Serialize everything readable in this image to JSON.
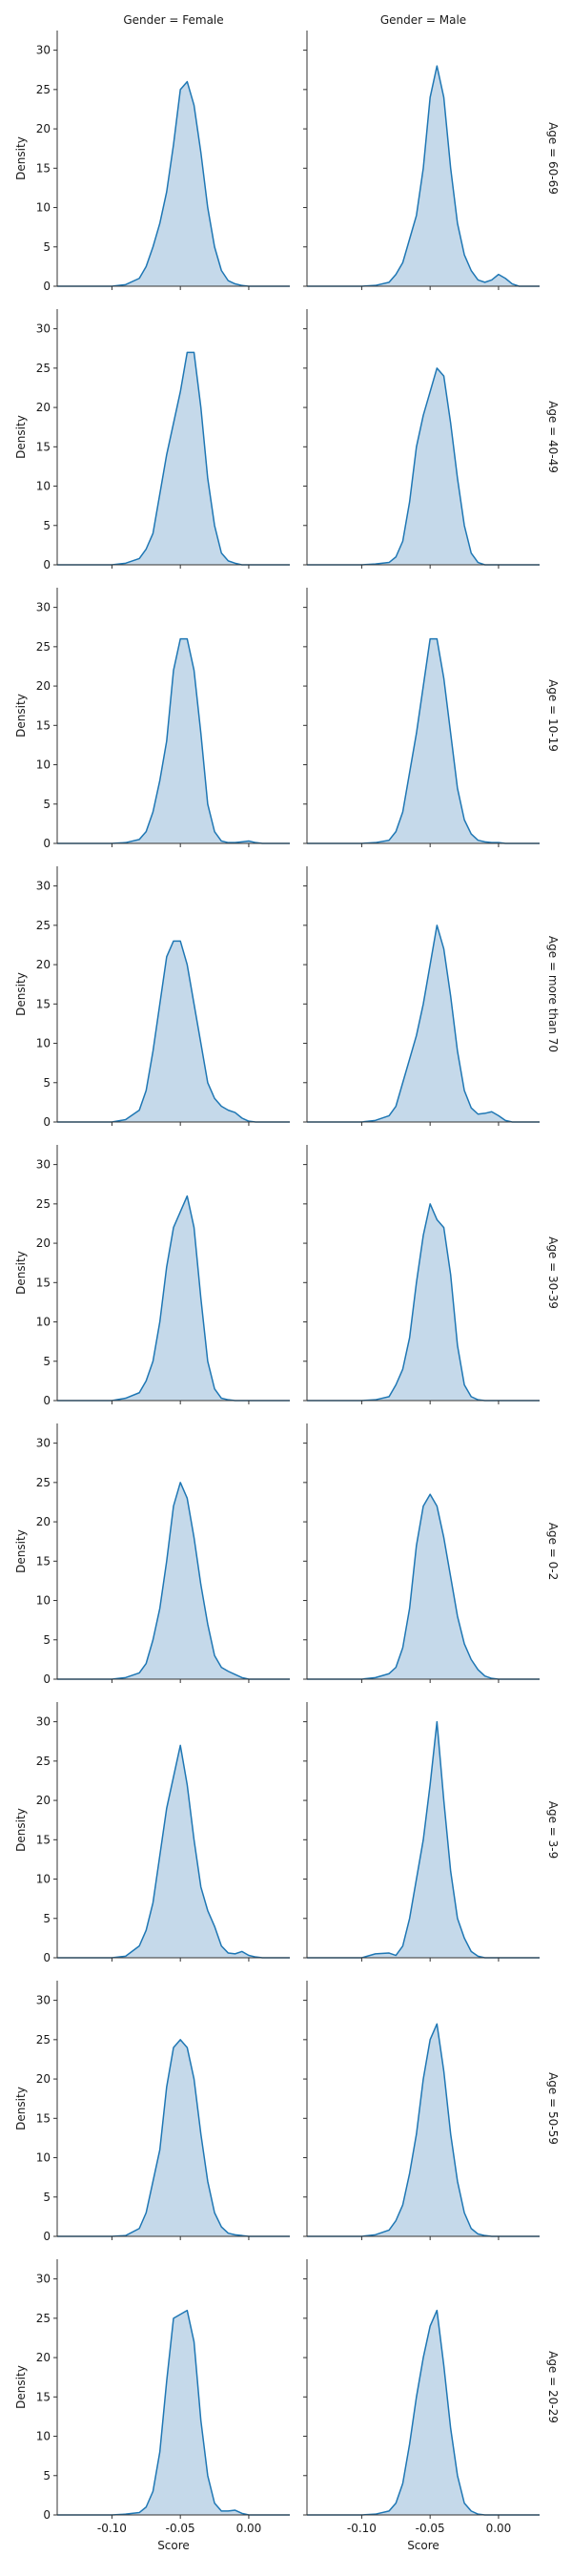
{
  "chart_data": {
    "type": "area",
    "kind": "kde-facet-grid",
    "col_labels": [
      "Gender = Female",
      "Gender = Male"
    ],
    "row_labels": [
      "Age = 60-69",
      "Age = 40-49",
      "Age = 10-19",
      "Age = more than 70",
      "Age = 30-39",
      "Age = 0-2",
      "Age = 3-9",
      "Age = 50-59",
      "Age = 20-29"
    ],
    "xlabel": "Score",
    "ylabel": "Density",
    "xlim": [
      -0.14,
      0.03
    ],
    "ylim": [
      0,
      32.5
    ],
    "xticks": [
      -0.1,
      -0.05,
      0.0
    ],
    "xtick_labels": [
      "-0.10",
      "-0.05",
      "0.00"
    ],
    "yticks": [
      0,
      5,
      10,
      15,
      20,
      25,
      30
    ],
    "ytick_labels": [
      "0",
      "5",
      "10",
      "15",
      "20",
      "25",
      "30"
    ],
    "grid": false,
    "line_color": "#1f77b4",
    "fill_color": "#c5d9ea",
    "x": [
      -0.14,
      -0.13,
      -0.12,
      -0.11,
      -0.1,
      -0.09,
      -0.08,
      -0.075,
      -0.07,
      -0.065,
      -0.06,
      -0.055,
      -0.05,
      -0.045,
      -0.04,
      -0.035,
      -0.03,
      -0.025,
      -0.02,
      -0.015,
      -0.01,
      -0.005,
      0.0,
      0.005,
      0.01,
      0.015,
      0.02,
      0.03
    ],
    "panels": [
      [
        {
          "values": [
            0,
            0,
            0,
            0,
            0,
            0.2,
            1,
            2.5,
            5,
            8,
            12,
            18,
            25,
            26,
            23,
            17,
            10,
            5,
            2,
            0.7,
            0.3,
            0.1,
            0,
            0,
            0,
            0,
            0,
            0
          ]
        },
        {
          "values": [
            0,
            0,
            0,
            0,
            0,
            0.1,
            0.5,
            1.5,
            3,
            6,
            9,
            15,
            24,
            28,
            24,
            15,
            8,
            4,
            2,
            0.8,
            0.5,
            0.8,
            1.5,
            1,
            0.3,
            0,
            0,
            0
          ]
        }
      ],
      [
        {
          "values": [
            0,
            0,
            0,
            0,
            0,
            0.2,
            0.8,
            2,
            4,
            9,
            14,
            18,
            22,
            27,
            27,
            20,
            11,
            5,
            1.5,
            0.5,
            0.2,
            0,
            0,
            0,
            0,
            0,
            0,
            0
          ]
        },
        {
          "values": [
            0,
            0,
            0,
            0,
            0,
            0.1,
            0.3,
            1,
            3,
            8,
            15,
            19,
            22,
            25,
            24,
            18,
            11,
            5,
            1.5,
            0.3,
            0,
            0,
            0,
            0,
            0,
            0,
            0,
            0
          ]
        }
      ],
      [
        {
          "values": [
            0,
            0,
            0,
            0,
            0,
            0.1,
            0.5,
            1.5,
            4,
            8,
            13,
            22,
            26,
            26,
            22,
            14,
            5,
            1.5,
            0.3,
            0.1,
            0.1,
            0.2,
            0.3,
            0.1,
            0,
            0,
            0,
            0
          ]
        },
        {
          "values": [
            0,
            0,
            0,
            0,
            0,
            0.1,
            0.4,
            1.5,
            4,
            9,
            14,
            20,
            26,
            26,
            21,
            14,
            7,
            3,
            1.2,
            0.4,
            0.2,
            0.1,
            0.1,
            0,
            0,
            0,
            0,
            0
          ]
        }
      ],
      [
        {
          "values": [
            0,
            0,
            0,
            0,
            0,
            0.3,
            1.5,
            4,
            9,
            15,
            21,
            23,
            23,
            20,
            15,
            10,
            5,
            3,
            2,
            1.5,
            1.2,
            0.5,
            0.1,
            0,
            0,
            0,
            0,
            0
          ]
        },
        {
          "values": [
            0,
            0,
            0,
            0,
            0,
            0.2,
            0.8,
            2,
            5,
            8,
            11,
            15,
            20,
            25,
            22,
            16,
            9,
            4,
            1.8,
            1,
            1.1,
            1.3,
            0.8,
            0.2,
            0,
            0,
            0,
            0
          ]
        }
      ],
      [
        {
          "values": [
            0,
            0,
            0,
            0,
            0,
            0.3,
            1,
            2.5,
            5,
            10,
            17,
            22,
            24,
            26,
            22,
            13,
            5,
            1.5,
            0.3,
            0.1,
            0,
            0,
            0,
            0,
            0,
            0,
            0,
            0
          ]
        },
        {
          "values": [
            0,
            0,
            0,
            0,
            0,
            0.1,
            0.5,
            2,
            4,
            8,
            15,
            21,
            25,
            23,
            22,
            16,
            7,
            2,
            0.5,
            0.1,
            0,
            0,
            0,
            0,
            0,
            0,
            0,
            0
          ]
        }
      ],
      [
        {
          "values": [
            0,
            0,
            0,
            0,
            0,
            0.2,
            0.8,
            2,
            5,
            9,
            15,
            22,
            25,
            23,
            18,
            12,
            7,
            3,
            1.5,
            1,
            0.6,
            0.2,
            0,
            0,
            0,
            0,
            0,
            0
          ]
        },
        {
          "values": [
            0,
            0,
            0,
            0,
            0,
            0.2,
            0.7,
            1.5,
            4,
            9,
            17,
            22,
            23.5,
            22,
            18,
            13,
            8,
            4.5,
            2.5,
            1.2,
            0.4,
            0.1,
            0,
            0,
            0,
            0,
            0,
            0
          ]
        }
      ],
      [
        {
          "values": [
            0,
            0,
            0,
            0,
            0,
            0.2,
            1.5,
            3.5,
            7,
            13,
            19,
            23,
            27,
            22,
            15,
            9,
            6,
            4,
            1.5,
            0.6,
            0.5,
            0.8,
            0.3,
            0.1,
            0,
            0,
            0,
            0
          ]
        },
        {
          "values": [
            0,
            0,
            0,
            0,
            0,
            0.5,
            0.6,
            0.3,
            1.5,
            5,
            10,
            15,
            22,
            30,
            20,
            11,
            5,
            2.5,
            0.8,
            0.2,
            0,
            0,
            0,
            0,
            0,
            0,
            0,
            0
          ]
        }
      ],
      [
        {
          "values": [
            0,
            0,
            0,
            0,
            0,
            0.1,
            1,
            3,
            7,
            11,
            19,
            24,
            25,
            24,
            20,
            13,
            7,
            3,
            1.2,
            0.4,
            0.2,
            0.1,
            0,
            0,
            0,
            0,
            0,
            0
          ]
        },
        {
          "values": [
            0,
            0,
            0,
            0,
            0,
            0.2,
            0.8,
            2,
            4,
            8,
            13,
            20,
            25,
            27,
            21,
            13,
            7,
            3,
            1,
            0.3,
            0.1,
            0,
            0,
            0,
            0,
            0,
            0,
            0
          ]
        }
      ],
      [
        {
          "values": [
            0,
            0,
            0,
            0,
            0,
            0.1,
            0.3,
            1,
            3,
            8,
            17,
            25,
            25.5,
            26,
            22,
            12,
            5,
            1.5,
            0.5,
            0.5,
            0.6,
            0.2,
            0,
            0,
            0,
            0,
            0,
            0
          ]
        },
        {
          "values": [
            0,
            0,
            0,
            0,
            0,
            0.1,
            0.5,
            1.5,
            4,
            9,
            15,
            20,
            24,
            26,
            19,
            11,
            5,
            1.5,
            0.5,
            0.1,
            0,
            0,
            0,
            0,
            0,
            0,
            0,
            0
          ]
        }
      ]
    ]
  }
}
